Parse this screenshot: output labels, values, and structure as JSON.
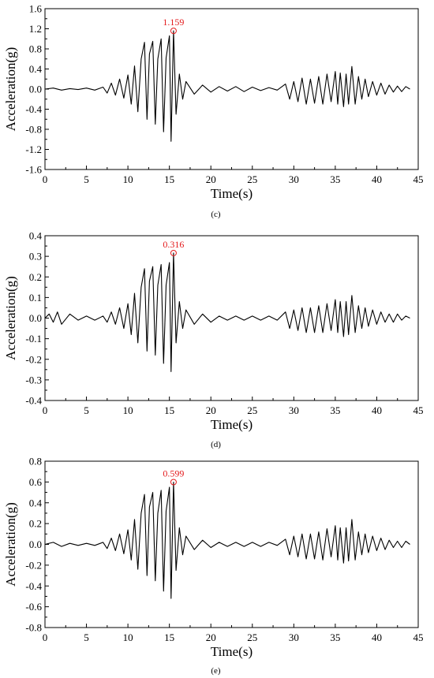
{
  "chart_data": [
    {
      "type": "line",
      "panel_label": "(c)",
      "xlabel": "Time(s)",
      "ylabel": "Acceleration(g)",
      "xlim": [
        0,
        45
      ],
      "ylim": [
        -1.6,
        1.6
      ],
      "xticks": [
        "0",
        "5",
        "10",
        "15",
        "20",
        "25",
        "30",
        "35",
        "40",
        "45"
      ],
      "yticks": [
        "-1.6",
        "-1.2",
        "-0.8",
        "-0.4",
        "0.0",
        "0.4",
        "0.8",
        "1.2",
        "1.6"
      ],
      "grid": false,
      "line_color": "#000000",
      "annotation": {
        "text": "1.159",
        "x": 15.5,
        "y": 1.159,
        "color": "#e31a1c"
      },
      "series": [
        {
          "x": [
            0,
            1,
            2,
            3,
            4,
            5,
            6,
            7,
            7.5,
            8,
            8.5,
            9,
            9.5,
            10,
            10.4,
            10.8,
            11.2,
            11.6,
            12,
            12.3,
            12.6,
            13,
            13.3,
            13.6,
            14,
            14.3,
            14.6,
            15,
            15.2,
            15.5,
            15.8,
            16.2,
            16.6,
            17,
            18,
            19,
            20,
            21,
            22,
            23,
            24,
            25,
            26,
            27,
            28,
            29,
            29.5,
            30,
            30.5,
            31,
            31.5,
            32,
            32.5,
            33,
            33.5,
            34,
            34.5,
            35,
            35.3,
            35.6,
            36,
            36.3,
            36.6,
            37,
            37.4,
            37.8,
            38.2,
            38.6,
            39,
            39.5,
            40,
            40.5,
            41,
            41.5,
            42,
            42.5,
            43,
            43.5,
            44
          ],
          "y": [
            0.0,
            0.02,
            -0.02,
            0.01,
            -0.01,
            0.02,
            -0.02,
            0.04,
            -0.08,
            0.12,
            -0.12,
            0.2,
            -0.18,
            0.28,
            -0.3,
            0.46,
            -0.45,
            0.6,
            0.93,
            -0.6,
            0.7,
            0.95,
            -0.7,
            0.6,
            1.0,
            -0.85,
            0.62,
            1.06,
            -1.04,
            1.159,
            -0.5,
            0.3,
            -0.2,
            0.15,
            -0.1,
            0.08,
            -0.06,
            0.05,
            -0.04,
            0.05,
            -0.05,
            0.04,
            -0.03,
            0.03,
            -0.02,
            0.1,
            -0.2,
            0.15,
            -0.25,
            0.22,
            -0.3,
            0.2,
            -0.28,
            0.25,
            -0.3,
            0.3,
            -0.25,
            0.35,
            -0.3,
            0.32,
            -0.35,
            0.3,
            -0.3,
            0.45,
            -0.3,
            0.25,
            -0.2,
            0.2,
            -0.15,
            0.15,
            -0.12,
            0.12,
            -0.1,
            0.08,
            -0.06,
            0.06,
            -0.05,
            0.05,
            0.0
          ]
        }
      ]
    },
    {
      "type": "line",
      "panel_label": "(d)",
      "xlabel": "Time(s)",
      "ylabel": "Acceleration(g)",
      "xlim": [
        0,
        45
      ],
      "ylim": [
        -0.4,
        0.4
      ],
      "xticks": [
        "0",
        "5",
        "10",
        "15",
        "20",
        "25",
        "30",
        "35",
        "40",
        "45"
      ],
      "yticks": [
        "-0.4",
        "-0.3",
        "-0.2",
        "-0.1",
        "0.0",
        "0.1",
        "0.2",
        "0.3",
        "0.4"
      ],
      "grid": false,
      "line_color": "#000000",
      "annotation": {
        "text": "0.316",
        "x": 15.5,
        "y": 0.316,
        "color": "#e31a1c"
      },
      "series": [
        {
          "x": [
            0,
            0.5,
            1,
            1.5,
            2,
            3,
            4,
            5,
            6,
            7,
            7.5,
            8,
            8.5,
            9,
            9.5,
            10,
            10.4,
            10.8,
            11.2,
            11.6,
            12,
            12.3,
            12.6,
            13,
            13.3,
            13.6,
            14,
            14.3,
            14.6,
            15,
            15.2,
            15.5,
            15.8,
            16.2,
            16.6,
            17,
            18,
            19,
            20,
            21,
            22,
            23,
            24,
            25,
            26,
            27,
            28,
            29,
            29.5,
            30,
            30.5,
            31,
            31.5,
            32,
            32.5,
            33,
            33.5,
            34,
            34.5,
            35,
            35.3,
            35.6,
            36,
            36.3,
            36.6,
            37,
            37.4,
            37.8,
            38.2,
            38.6,
            39,
            39.5,
            40,
            40.5,
            41,
            41.5,
            42,
            42.5,
            43,
            43.5,
            44
          ],
          "y": [
            0.0,
            0.02,
            -0.02,
            0.03,
            -0.03,
            0.02,
            -0.01,
            0.01,
            -0.01,
            0.01,
            -0.02,
            0.03,
            -0.03,
            0.05,
            -0.05,
            0.07,
            -0.08,
            0.12,
            -0.12,
            0.15,
            0.24,
            -0.16,
            0.18,
            0.25,
            -0.18,
            0.16,
            0.26,
            -0.22,
            0.16,
            0.27,
            -0.26,
            0.316,
            -0.12,
            0.08,
            -0.05,
            0.04,
            -0.03,
            0.02,
            -0.02,
            0.01,
            -0.01,
            0.01,
            -0.01,
            0.01,
            -0.01,
            0.01,
            -0.01,
            0.03,
            -0.05,
            0.04,
            -0.06,
            0.05,
            -0.07,
            0.05,
            -0.07,
            0.06,
            -0.07,
            0.07,
            -0.06,
            0.09,
            -0.07,
            0.08,
            -0.09,
            0.08,
            -0.08,
            0.11,
            -0.07,
            0.06,
            -0.05,
            0.05,
            -0.04,
            0.04,
            -0.03,
            0.03,
            -0.02,
            0.02,
            -0.02,
            0.02,
            -0.01,
            0.01,
            0.0
          ]
        }
      ]
    },
    {
      "type": "line",
      "panel_label": "(e)",
      "xlabel": "Time(s)",
      "ylabel": "Acceleration(g)",
      "xlim": [
        0,
        45
      ],
      "ylim": [
        -0.8,
        0.8
      ],
      "xticks": [
        "0",
        "5",
        "10",
        "15",
        "20",
        "25",
        "30",
        "35",
        "40",
        "45"
      ],
      "yticks": [
        "-0.8",
        "-0.6",
        "-0.4",
        "-0.2",
        "0.0",
        "0.2",
        "0.4",
        "0.6",
        "0.8"
      ],
      "grid": false,
      "line_color": "#000000",
      "annotation": {
        "text": "0.599",
        "x": 15.5,
        "y": 0.599,
        "color": "#e31a1c"
      },
      "series": [
        {
          "x": [
            0,
            1,
            2,
            3,
            4,
            5,
            6,
            7,
            7.5,
            8,
            8.5,
            9,
            9.5,
            10,
            10.4,
            10.8,
            11.2,
            11.6,
            12,
            12.3,
            12.6,
            13,
            13.3,
            13.6,
            14,
            14.3,
            14.6,
            15,
            15.2,
            15.5,
            15.8,
            16.2,
            16.6,
            17,
            18,
            19,
            20,
            21,
            22,
            23,
            24,
            25,
            26,
            27,
            28,
            29,
            29.5,
            30,
            30.5,
            31,
            31.5,
            32,
            32.5,
            33,
            33.5,
            34,
            34.5,
            35,
            35.3,
            35.6,
            36,
            36.3,
            36.6,
            37,
            37.4,
            37.8,
            38.2,
            38.6,
            39,
            39.5,
            40,
            40.5,
            41,
            41.5,
            42,
            42.5,
            43,
            43.5,
            44
          ],
          "y": [
            0.0,
            0.02,
            -0.02,
            0.01,
            -0.01,
            0.01,
            -0.01,
            0.02,
            -0.04,
            0.06,
            -0.06,
            0.1,
            -0.09,
            0.14,
            -0.15,
            0.24,
            -0.24,
            0.3,
            0.48,
            -0.3,
            0.36,
            0.5,
            -0.35,
            0.3,
            0.52,
            -0.45,
            0.32,
            0.55,
            -0.52,
            0.599,
            -0.25,
            0.16,
            -0.1,
            0.08,
            -0.05,
            0.04,
            -0.03,
            0.02,
            -0.02,
            0.02,
            -0.02,
            0.02,
            -0.02,
            0.02,
            -0.01,
            0.05,
            -0.1,
            0.08,
            -0.12,
            0.1,
            -0.14,
            0.1,
            -0.14,
            0.12,
            -0.15,
            0.15,
            -0.12,
            0.18,
            -0.15,
            0.16,
            -0.18,
            0.16,
            -0.16,
            0.24,
            -0.15,
            0.12,
            -0.1,
            0.1,
            -0.08,
            0.08,
            -0.06,
            0.06,
            -0.05,
            0.04,
            -0.03,
            0.03,
            -0.03,
            0.03,
            0.0
          ]
        }
      ]
    }
  ]
}
